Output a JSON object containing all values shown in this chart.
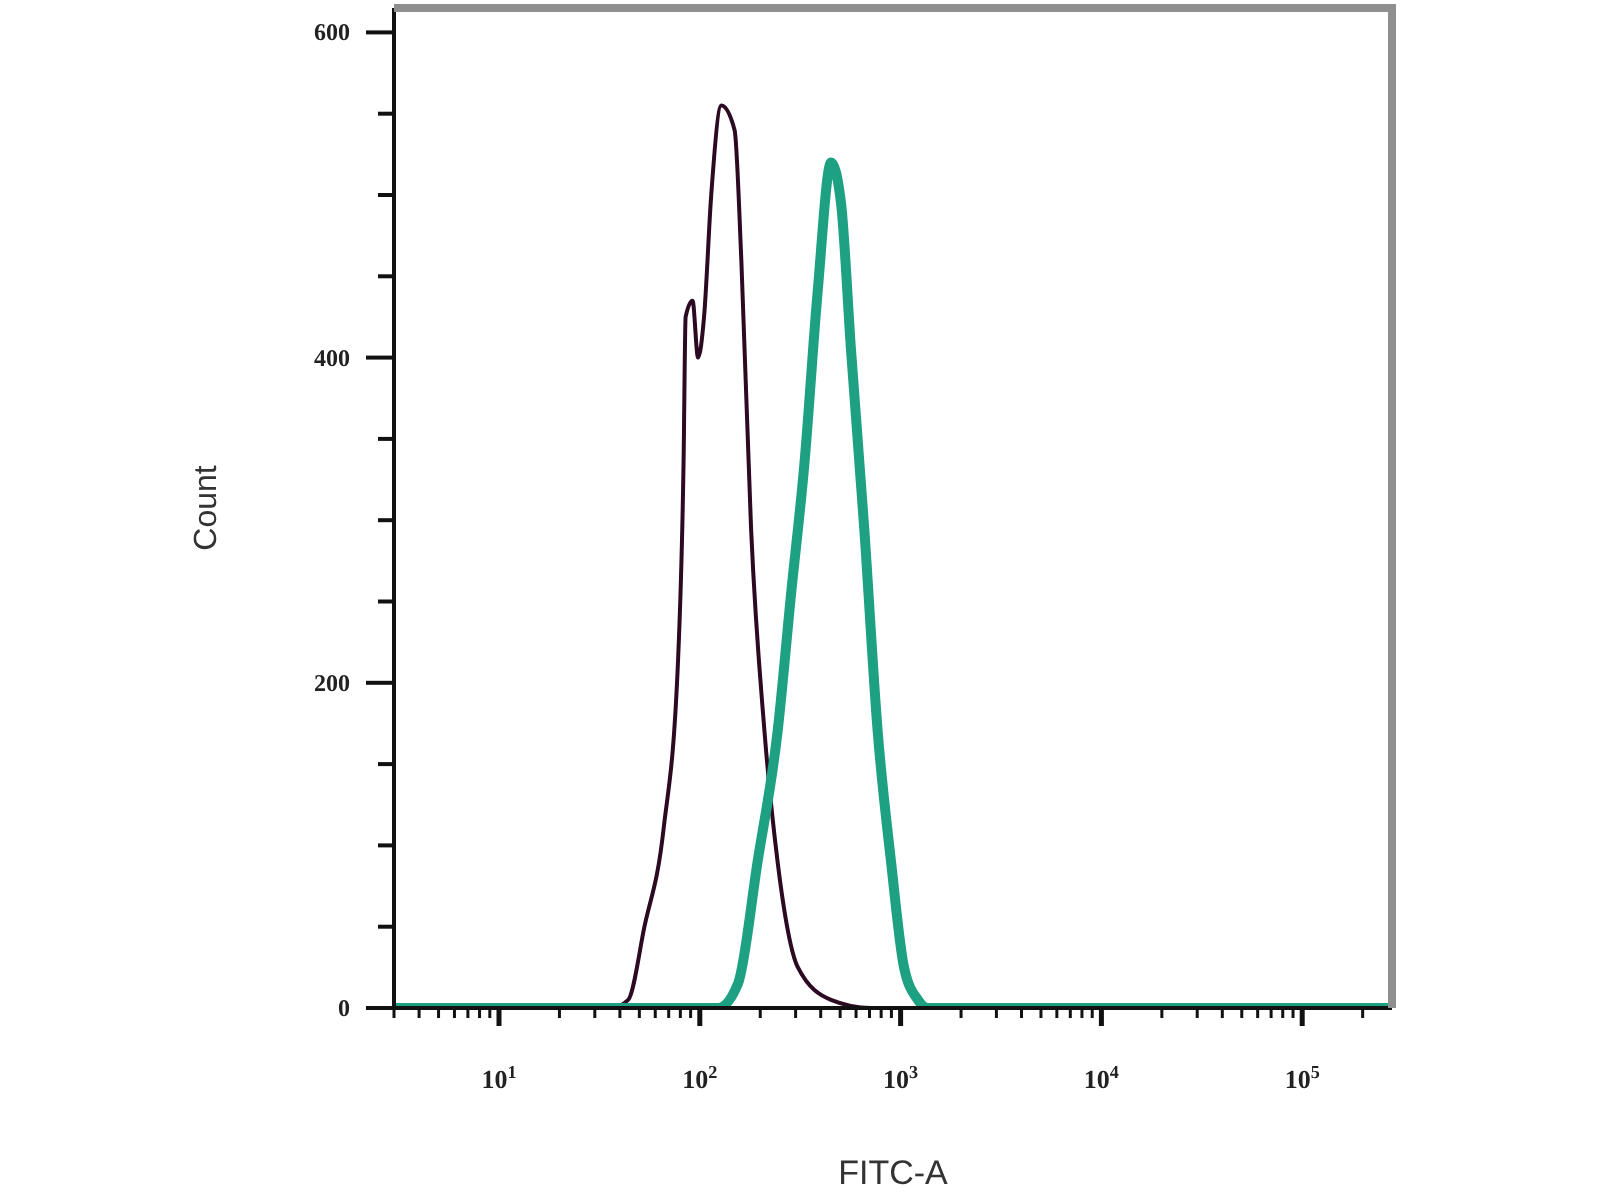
{
  "chart_data": {
    "type": "line",
    "xlabel": "FITC-A",
    "ylabel": "Count",
    "log": "x",
    "xlim": [
      3,
      280000
    ],
    "xticks": [
      {
        "value": 3,
        "label": null
      },
      {
        "value": 4,
        "label": null
      },
      {
        "value": 5,
        "label": null
      },
      {
        "value": 6,
        "label": null
      },
      {
        "value": 7,
        "label": null
      },
      {
        "value": 8,
        "label": null
      },
      {
        "value": 9,
        "label": null
      },
      {
        "value": 10,
        "label": "10$^{1}$"
      },
      {
        "value": 20,
        "label": null
      },
      {
        "value": 30,
        "label": null
      },
      {
        "value": 40,
        "label": null
      },
      {
        "value": 50,
        "label": null
      },
      {
        "value": 60,
        "label": null
      },
      {
        "value": 70,
        "label": null
      },
      {
        "value": 80,
        "label": null
      },
      {
        "value": 90,
        "label": null
      },
      {
        "value": 100,
        "label": "10$^{2}$"
      },
      {
        "value": 200,
        "label": null
      },
      {
        "value": 300,
        "label": null
      },
      {
        "value": 400,
        "label": null
      },
      {
        "value": 500,
        "label": null
      },
      {
        "value": 600,
        "label": null
      },
      {
        "value": 700,
        "label": null
      },
      {
        "value": 800,
        "label": null
      },
      {
        "value": 900,
        "label": null
      },
      {
        "value": 1000,
        "label": "10$^{3}$"
      },
      {
        "value": 2000,
        "label": null
      },
      {
        "value": 3000,
        "label": null
      },
      {
        "value": 4000,
        "label": null
      },
      {
        "value": 5000,
        "label": null
      },
      {
        "value": 6000,
        "label": null
      },
      {
        "value": 7000,
        "label": null
      },
      {
        "value": 8000,
        "label": null
      },
      {
        "value": 9000,
        "label": null
      },
      {
        "value": 10000,
        "label": "10$^{4}$"
      },
      {
        "value": 20000,
        "label": null
      },
      {
        "value": 30000,
        "label": null
      },
      {
        "value": 40000,
        "label": null
      },
      {
        "value": 50000,
        "label": null
      },
      {
        "value": 60000,
        "label": null
      },
      {
        "value": 70000,
        "label": null
      },
      {
        "value": 80000,
        "label": null
      },
      {
        "value": 90000,
        "label": null
      },
      {
        "value": 100000,
        "label": "10$^{5}$"
      },
      {
        "value": 200000,
        "label": null
      }
    ],
    "ylim": [
      0,
      615
    ],
    "yticks": [
      0,
      {
        "value": 50,
        "label": null
      },
      {
        "value": 100,
        "label": null
      },
      {
        "value": 150,
        "label": null
      },
      200,
      {
        "value": 250,
        "label": null
      },
      {
        "value": 300,
        "label": null
      },
      {
        "value": 350,
        "label": null
      },
      400,
      {
        "value": 450,
        "label": null
      },
      {
        "value": 500,
        "label": null
      },
      {
        "value": 550,
        "label": null
      },
      600
    ],
    "series": [
      {
        "color": "#2b0a22",
        "x": [
          28,
          36,
          44,
          53,
          66,
          78,
          83,
          85,
          92,
          98,
          105,
          114,
          128,
          149,
          161,
          180,
          210,
          244,
          308,
          450,
          710,
          970
        ],
        "values": [
          0,
          0,
          5,
          50,
          110,
          215,
          335,
          425,
          435,
          400,
          425,
          500,
          555,
          540,
          460,
          295,
          170,
          90,
          25,
          5,
          0,
          0
        ]
      },
      {
        "color": "#1ea082",
        "x": [
          3,
          123,
          155,
          194,
          244,
          285,
          332,
          386,
          451,
          505,
          566,
          659,
          769,
          896,
          1040,
          1220,
          1360,
          280000
        ],
        "values": [
          0,
          0,
          15,
          90,
          170,
          255,
          335,
          440,
          520,
          495,
          405,
          295,
          170,
          90,
          25,
          5,
          0,
          0
        ]
      }
    ]
  }
}
